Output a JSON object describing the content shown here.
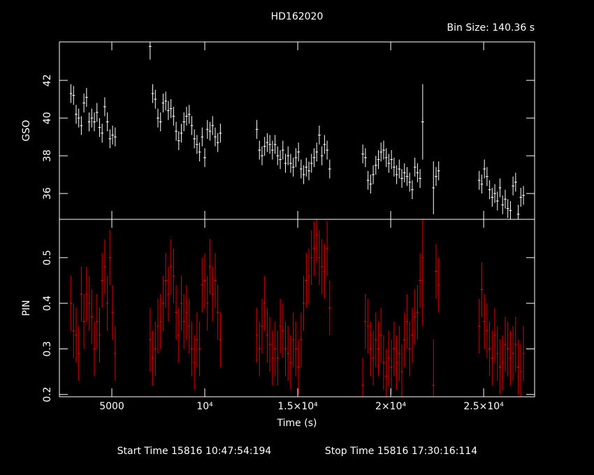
{
  "chart_data": [
    {
      "type": "errorbar",
      "title": "HD162020",
      "subtitle": "Bin Size: 140.36 s",
      "ylabel": "GSO",
      "color": "#ffffff",
      "xlim": [
        2180,
        27740
      ],
      "ylim": [
        34.63,
        44.04
      ],
      "yticks": [
        36,
        38,
        40,
        42
      ],
      "x": [
        2800,
        2940,
        3080,
        3220,
        3360,
        3500,
        3640,
        3780,
        3920,
        4060,
        4200,
        4340,
        4480,
        4620,
        4760,
        4900,
        5040,
        5180,
        7060,
        7200,
        7340,
        7480,
        7620,
        7760,
        7900,
        8040,
        8180,
        8320,
        8460,
        8600,
        8740,
        8880,
        9020,
        9160,
        9300,
        9440,
        9580,
        9720,
        9860,
        10000,
        10140,
        10280,
        10420,
        10560,
        10700,
        10840,
        12800,
        12940,
        13080,
        13220,
        13360,
        13500,
        13640,
        13780,
        13920,
        14060,
        14200,
        14340,
        14480,
        14620,
        14760,
        14900,
        15040,
        15180,
        15320,
        15460,
        15600,
        15740,
        15880,
        16020,
        16160,
        16300,
        16440,
        16580,
        16720,
        18500,
        18640,
        18780,
        18920,
        19060,
        19200,
        19340,
        19480,
        19620,
        19760,
        19900,
        20040,
        20180,
        20320,
        20460,
        20600,
        20740,
        20880,
        21020,
        21160,
        21300,
        21440,
        21580,
        21720,
        22300,
        22440,
        22580,
        24760,
        24900,
        25040,
        25180,
        25320,
        25460,
        25600,
        25740,
        25880,
        26020,
        26160,
        26300,
        26440,
        26580,
        26720,
        26860,
        27000,
        27140
      ],
      "values": [
        41.3,
        41.2,
        40.2,
        40.0,
        39.6,
        40.8,
        41.1,
        39.8,
        40.0,
        39.8,
        40.3,
        39.5,
        39.2,
        40.6,
        39.8,
        38.9,
        39.1,
        39.0,
        43.8,
        41.3,
        41.0,
        40.0,
        39.8,
        40.8,
        40.9,
        40.4,
        40.5,
        40.1,
        39.3,
        38.8,
        39.2,
        39.8,
        40.1,
        40.2,
        39.6,
        38.9,
        38.6,
        38.2,
        39.0,
        37.9,
        39.4,
        39.3,
        39.6,
        39.0,
        38.7,
        39.2,
        39.4,
        38.3,
        38.0,
        38.5,
        38.7,
        38.6,
        38.3,
        38.6,
        38.0,
        37.8,
        38.3,
        37.6,
        38.0,
        37.6,
        37.4,
        37.9,
        38.2,
        37.3,
        37.0,
        37.4,
        37.2,
        37.6,
        37.9,
        38.2,
        39.1,
        38.0,
        38.6,
        38.3,
        37.3,
        38.1,
        37.9,
        36.7,
        36.5,
        37.0,
        37.5,
        37.8,
        38.2,
        38.3,
        37.9,
        37.6,
        37.8,
        37.4,
        37.0,
        37.3,
        36.8,
        37.1,
        36.9,
        36.6,
        36.2,
        37.4,
        37.1,
        36.8,
        39.8,
        36.3,
        36.9,
        37.2,
        36.7,
        36.5,
        37.3,
        36.9,
        36.2,
        35.8,
        36.0,
        35.6,
        36.3,
        35.4,
        35.7,
        35.2,
        35.1,
        36.4,
        36.6,
        34.9,
        35.8,
        35.9
      ],
      "errors": [
        0.5,
        0.5,
        0.5,
        0.5,
        0.5,
        0.5,
        0.5,
        0.5,
        0.5,
        0.5,
        0.5,
        0.5,
        0.5,
        0.5,
        0.5,
        0.5,
        0.5,
        0.5,
        0.7,
        0.5,
        0.5,
        0.5,
        0.5,
        0.5,
        0.5,
        0.5,
        0.5,
        0.5,
        0.5,
        0.5,
        0.5,
        0.5,
        0.5,
        0.5,
        0.5,
        0.5,
        0.5,
        0.5,
        0.5,
        0.5,
        0.5,
        0.5,
        0.5,
        0.5,
        0.5,
        0.5,
        0.5,
        0.5,
        0.5,
        0.5,
        0.5,
        0.5,
        0.5,
        0.5,
        0.5,
        0.5,
        0.5,
        0.5,
        0.5,
        0.5,
        0.5,
        0.5,
        0.5,
        0.5,
        0.5,
        0.5,
        0.5,
        0.5,
        0.5,
        0.5,
        0.5,
        0.5,
        0.5,
        0.5,
        0.5,
        0.5,
        0.5,
        0.5,
        0.5,
        0.5,
        0.5,
        0.5,
        0.5,
        0.5,
        0.5,
        0.5,
        0.5,
        0.5,
        0.5,
        0.5,
        0.5,
        0.5,
        0.5,
        0.5,
        0.5,
        0.5,
        0.5,
        0.5,
        2.0,
        1.4,
        0.5,
        0.5,
        0.5,
        0.5,
        0.5,
        0.5,
        0.5,
        0.5,
        0.5,
        0.5,
        0.5,
        0.5,
        0.5,
        0.5,
        0.5,
        0.5,
        0.5,
        0.5,
        0.5,
        0.5
      ]
    },
    {
      "type": "errorbar",
      "ylabel": "PIN",
      "xlabel": "Time (s)",
      "color": "#e00000",
      "xlim": [
        2180,
        27740
      ],
      "ylim": [
        0.195,
        0.584
      ],
      "yticks": [
        0.2,
        0.3,
        0.4,
        0.5
      ],
      "xticks": [
        {
          "value": 5000,
          "label": "5000"
        },
        {
          "value": 10000,
          "label": "10⁴"
        },
        {
          "value": 15000,
          "label": "1.5×10⁴"
        },
        {
          "value": 20000,
          "label": "2×10⁴"
        },
        {
          "value": 25000,
          "label": "2.5×10⁴"
        }
      ],
      "x": [
        2800,
        2940,
        3080,
        3220,
        3360,
        3500,
        3640,
        3780,
        3920,
        4060,
        4200,
        4340,
        4480,
        4620,
        4760,
        4900,
        5040,
        5180,
        7060,
        7200,
        7340,
        7480,
        7620,
        7760,
        7900,
        8040,
        8180,
        8320,
        8460,
        8600,
        8740,
        8880,
        9020,
        9160,
        9300,
        9440,
        9580,
        9720,
        9860,
        10000,
        10140,
        10280,
        10420,
        10560,
        10700,
        10840,
        12800,
        12940,
        13080,
        13220,
        13360,
        13500,
        13640,
        13780,
        13920,
        14060,
        14200,
        14340,
        14480,
        14620,
        14760,
        14900,
        15040,
        15180,
        15320,
        15460,
        15600,
        15740,
        15880,
        16020,
        16160,
        16300,
        16440,
        16580,
        16720,
        18500,
        18640,
        18780,
        18920,
        19060,
        19200,
        19340,
        19480,
        19620,
        19760,
        19900,
        20040,
        20180,
        20320,
        20460,
        20600,
        20740,
        20880,
        21020,
        21160,
        21300,
        21440,
        21580,
        21720,
        22300,
        22440,
        22580,
        24760,
        24900,
        25040,
        25180,
        25320,
        25460,
        25600,
        25740,
        25880,
        26020,
        26160,
        26300,
        26440,
        26580,
        26720,
        26860,
        27000,
        27140
      ],
      "values": [
        0.4,
        0.34,
        0.33,
        0.29,
        0.42,
        0.36,
        0.42,
        0.4,
        0.37,
        0.3,
        0.36,
        0.33,
        0.45,
        0.48,
        0.4,
        0.5,
        0.38,
        0.29,
        0.32,
        0.28,
        0.3,
        0.35,
        0.36,
        0.4,
        0.45,
        0.42,
        0.48,
        0.46,
        0.38,
        0.33,
        0.4,
        0.36,
        0.38,
        0.35,
        0.3,
        0.27,
        0.32,
        0.3,
        0.44,
        0.45,
        0.4,
        0.48,
        0.42,
        0.45,
        0.38,
        0.32,
        0.33,
        0.3,
        0.35,
        0.4,
        0.33,
        0.31,
        0.28,
        0.3,
        0.28,
        0.35,
        0.34,
        0.3,
        0.29,
        0.27,
        0.32,
        0.3,
        0.26,
        0.32,
        0.4,
        0.45,
        0.46,
        0.5,
        0.52,
        0.55,
        0.5,
        0.48,
        0.47,
        0.52,
        0.39,
        0.22,
        0.36,
        0.35,
        0.3,
        0.28,
        0.32,
        0.3,
        0.33,
        0.27,
        0.24,
        0.28,
        0.26,
        0.3,
        0.27,
        0.29,
        0.25,
        0.32,
        0.36,
        0.3,
        0.33,
        0.37,
        0.38,
        0.45,
        0.5,
        0.22,
        0.47,
        0.44,
        0.35,
        0.43,
        0.36,
        0.34,
        0.3,
        0.28,
        0.33,
        0.29,
        0.26,
        0.27,
        0.31,
        0.3,
        0.28,
        0.29,
        0.31,
        0.26,
        0.25,
        0.29
      ],
      "errors": [
        0.06,
        0.06,
        0.06,
        0.06,
        0.06,
        0.06,
        0.06,
        0.06,
        0.06,
        0.06,
        0.06,
        0.06,
        0.06,
        0.06,
        0.06,
        0.06,
        0.06,
        0.06,
        0.07,
        0.06,
        0.06,
        0.06,
        0.06,
        0.06,
        0.06,
        0.06,
        0.06,
        0.06,
        0.06,
        0.06,
        0.06,
        0.06,
        0.06,
        0.06,
        0.06,
        0.06,
        0.06,
        0.06,
        0.06,
        0.06,
        0.06,
        0.06,
        0.06,
        0.06,
        0.06,
        0.06,
        0.06,
        0.06,
        0.06,
        0.06,
        0.06,
        0.06,
        0.06,
        0.06,
        0.06,
        0.06,
        0.06,
        0.06,
        0.06,
        0.06,
        0.06,
        0.06,
        0.06,
        0.06,
        0.06,
        0.06,
        0.06,
        0.06,
        0.06,
        0.06,
        0.06,
        0.06,
        0.06,
        0.06,
        0.06,
        0.06,
        0.06,
        0.06,
        0.06,
        0.06,
        0.06,
        0.06,
        0.06,
        0.06,
        0.06,
        0.06,
        0.06,
        0.06,
        0.06,
        0.06,
        0.06,
        0.06,
        0.06,
        0.06,
        0.06,
        0.06,
        0.06,
        0.06,
        0.15,
        0.1,
        0.06,
        0.06,
        0.06,
        0.06,
        0.06,
        0.06,
        0.06,
        0.06,
        0.06,
        0.06,
        0.06,
        0.06,
        0.06,
        0.06,
        0.06,
        0.06,
        0.06,
        0.06,
        0.06,
        0.06
      ]
    }
  ],
  "footer": {
    "start": "Start Time 15816 10:47:54:194",
    "stop": "Stop Time 15816 17:30:16:114"
  }
}
